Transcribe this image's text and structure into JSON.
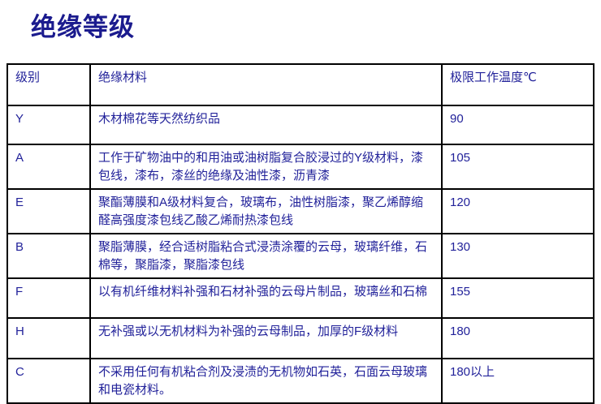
{
  "title": "绝缘等级",
  "table": {
    "headers": [
      "级别",
      "绝缘材料",
      "极限工作温度℃"
    ],
    "rows": [
      {
        "grade": "Y",
        "material": "木材棉花等天然纺织品",
        "temp": "90"
      },
      {
        "grade": "A",
        "material": "工作于矿物油中的和用油或油树脂复合胶浸过的Y级材料，漆包线，漆布，漆丝的绝缘及油性漆，沥青漆",
        "temp": "105"
      },
      {
        "grade": "E",
        "material": "聚酯薄膜和A级材料复合，玻璃布，油性树脂漆，聚乙烯醇缩醛高强度漆包线乙酸乙烯耐热漆包线",
        "temp": "120"
      },
      {
        "grade": "B",
        "material": "聚脂薄膜，经合适树脂粘合式浸渍涂覆的云母，玻璃纤维，石棉等，聚脂漆，聚脂漆包线",
        "temp": "130"
      },
      {
        "grade": "F",
        "material": "以有机纤维材料补强和石材补强的云母片制品，玻璃丝和石棉",
        "temp": "155"
      },
      {
        "grade": "H",
        "material": "无补强或以无机材料为补强的云母制品，加厚的F级材料",
        "temp": "180"
      },
      {
        "grade": "C",
        "material": "不采用任何有机粘合剂及浸渍的无机物如石英，石面云母玻璃和电瓷材料。",
        "temp": "180以上"
      }
    ]
  },
  "colors": {
    "title_text": "#1b1b8e",
    "table_text": "#22229a",
    "border": "#000000",
    "background": "#ffffff"
  }
}
